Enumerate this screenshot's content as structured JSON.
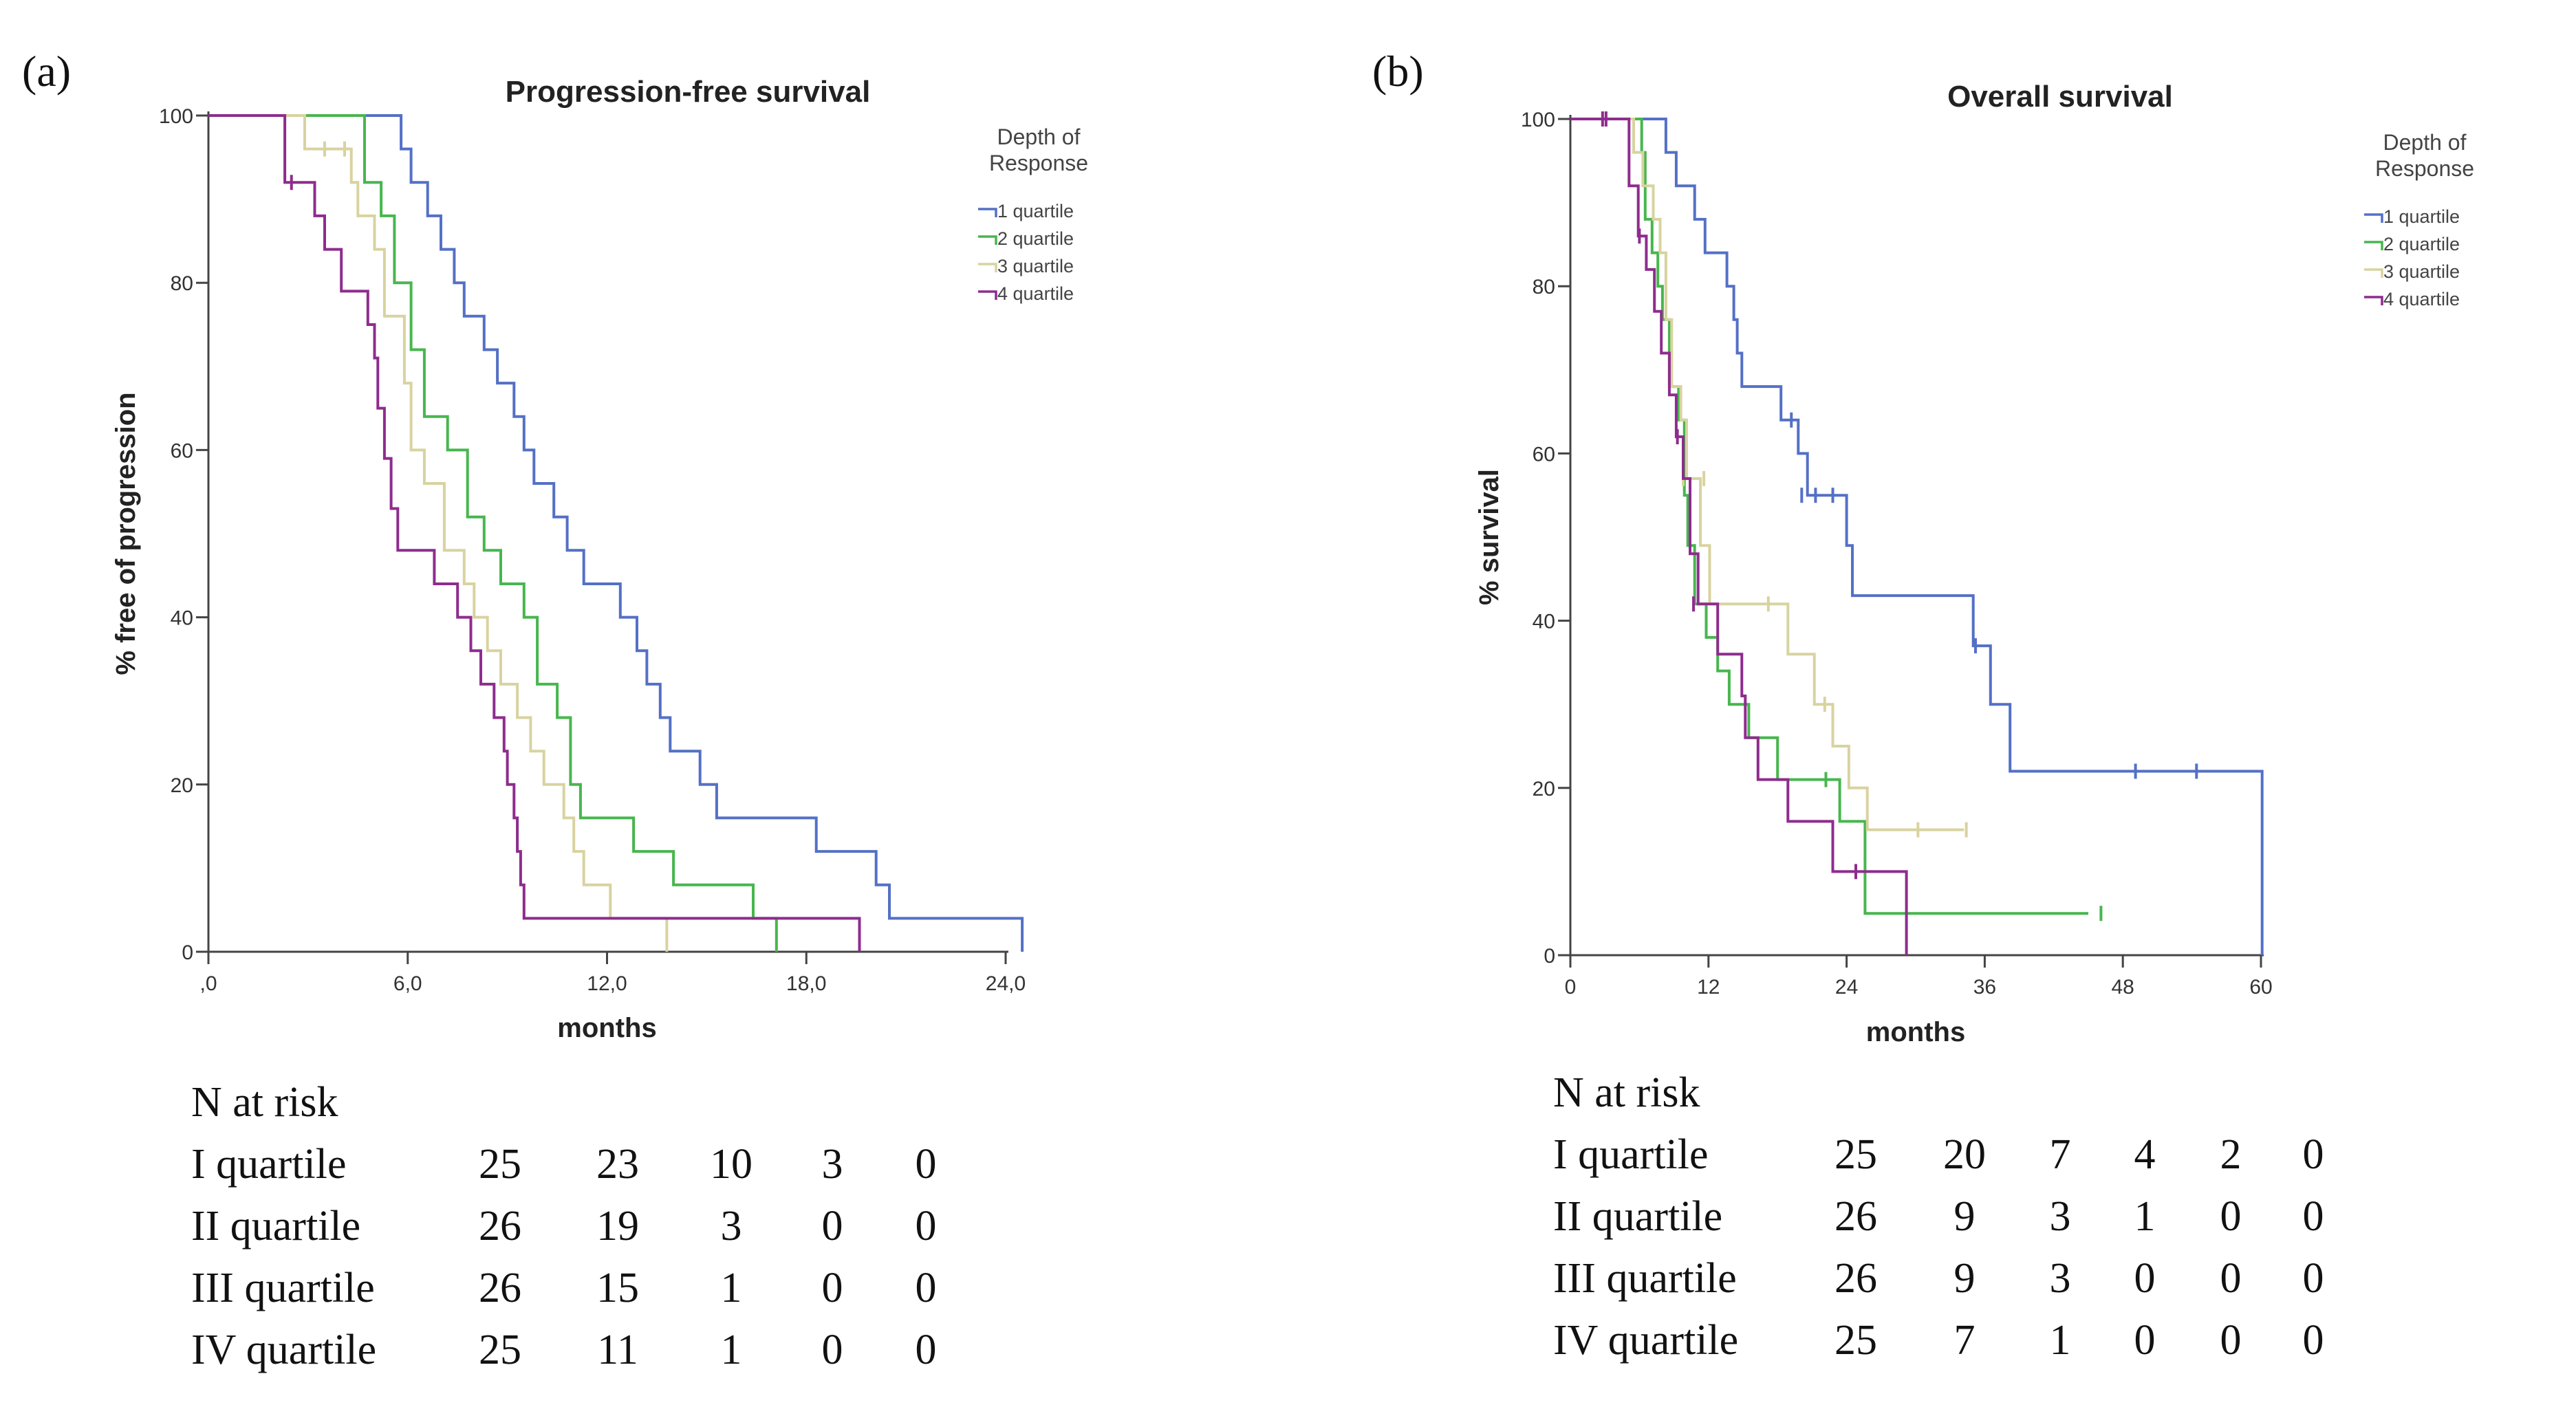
{
  "chart_data": [
    {
      "panel_label": "(a)",
      "type": "line",
      "subtype": "kaplan-meier-step",
      "title": "Progression-free survival",
      "xlabel": "months",
      "ylabel": "% free of progression",
      "xlim": [
        0,
        24
      ],
      "ylim": [
        0,
        100
      ],
      "x_ticks": [
        0,
        6,
        12,
        18,
        24
      ],
      "x_tick_labels": [
        ",0",
        "6,0",
        "12,0",
        "18,0",
        "24,0"
      ],
      "y_ticks": [
        0,
        20,
        40,
        60,
        80,
        100
      ],
      "legend_title_lines": [
        "Depth of",
        "Response"
      ],
      "legend_position": "right",
      "series": [
        {
          "name": "1 quartile",
          "color": "#5470c6",
          "points": [
            [
              0,
              100
            ],
            [
              5.7,
              100
            ],
            [
              5.8,
              96
            ],
            [
              6.1,
              92
            ],
            [
              6.6,
              88
            ],
            [
              7.0,
              84
            ],
            [
              7.4,
              80
            ],
            [
              7.7,
              76
            ],
            [
              8.3,
              72
            ],
            [
              8.7,
              68
            ],
            [
              9.2,
              64
            ],
            [
              9.5,
              60
            ],
            [
              9.8,
              56
            ],
            [
              10.4,
              52
            ],
            [
              10.8,
              48
            ],
            [
              11.3,
              44
            ],
            [
              12.4,
              40
            ],
            [
              12.9,
              36
            ],
            [
              13.2,
              32
            ],
            [
              13.6,
              28
            ],
            [
              13.9,
              24
            ],
            [
              14.8,
              20
            ],
            [
              15.3,
              16
            ],
            [
              18.3,
              12
            ],
            [
              20.1,
              8
            ],
            [
              20.5,
              4
            ],
            [
              24.5,
              4
            ],
            [
              24.5,
              0
            ]
          ],
          "censored": []
        },
        {
          "name": "2 quartile",
          "color": "#47b64e",
          "points": [
            [
              0,
              100
            ],
            [
              4.3,
              100
            ],
            [
              4.7,
              92
            ],
            [
              5.2,
              88
            ],
            [
              5.6,
              80
            ],
            [
              6.1,
              72
            ],
            [
              6.5,
              64
            ],
            [
              7.2,
              60
            ],
            [
              7.8,
              52
            ],
            [
              8.3,
              48
            ],
            [
              8.8,
              44
            ],
            [
              9.5,
              40
            ],
            [
              9.9,
              32
            ],
            [
              10.5,
              28
            ],
            [
              10.9,
              20
            ],
            [
              11.2,
              16
            ],
            [
              12.8,
              12
            ],
            [
              14.0,
              8
            ],
            [
              16.4,
              4
            ],
            [
              17.1,
              4
            ],
            [
              17.1,
              0
            ]
          ],
          "censored": []
        },
        {
          "name": "3 quartile",
          "color": "#d8d3a0",
          "points": [
            [
              0,
              100
            ],
            [
              2.5,
              100
            ],
            [
              2.9,
              96
            ],
            [
              4.3,
              92
            ],
            [
              4.5,
              88
            ],
            [
              5.0,
              84
            ],
            [
              5.3,
              76
            ],
            [
              5.9,
              68
            ],
            [
              6.1,
              60
            ],
            [
              6.5,
              56
            ],
            [
              7.1,
              48
            ],
            [
              7.7,
              44
            ],
            [
              8.0,
              40
            ],
            [
              8.4,
              36
            ],
            [
              8.8,
              32
            ],
            [
              9.3,
              28
            ],
            [
              9.7,
              24
            ],
            [
              10.1,
              20
            ],
            [
              10.7,
              16
            ],
            [
              11.0,
              12
            ],
            [
              11.3,
              8
            ],
            [
              12.1,
              4
            ],
            [
              13.8,
              4
            ],
            [
              13.8,
              0
            ]
          ],
          "censored": [
            [
              3.5,
              96
            ],
            [
              4.1,
              96
            ]
          ]
        },
        {
          "name": "4 quartile",
          "color": "#8e2c8e",
          "points": [
            [
              0,
              100
            ],
            [
              2.1,
              100
            ],
            [
              2.3,
              92
            ],
            [
              3.2,
              88
            ],
            [
              3.5,
              84
            ],
            [
              4.0,
              79
            ],
            [
              4.8,
              75
            ],
            [
              5.0,
              71
            ],
            [
              5.1,
              65
            ],
            [
              5.3,
              59
            ],
            [
              5.5,
              53
            ],
            [
              5.7,
              48
            ],
            [
              6.8,
              44
            ],
            [
              7.5,
              40
            ],
            [
              7.9,
              36
            ],
            [
              8.2,
              32
            ],
            [
              8.6,
              28
            ],
            [
              8.9,
              24
            ],
            [
              9.0,
              20
            ],
            [
              9.2,
              16
            ],
            [
              9.3,
              12
            ],
            [
              9.4,
              8
            ],
            [
              9.5,
              4
            ],
            [
              19.6,
              4
            ],
            [
              19.6,
              0
            ]
          ],
          "censored": [
            [
              2.5,
              92
            ]
          ]
        }
      ],
      "risk_table": {
        "title": "N at risk",
        "rows": [
          {
            "label": "I quartile",
            "values": [
              "25",
              "23",
              "10",
              "3",
              "0"
            ]
          },
          {
            "label": "II quartile",
            "values": [
              "26",
              "19",
              "3",
              "0",
              "0"
            ]
          },
          {
            "label": "III quartile",
            "values": [
              "26",
              "15",
              "1",
              "0",
              "0"
            ]
          },
          {
            "label": "IV quartile",
            "values": [
              "25",
              "11",
              "1",
              "0",
              "0"
            ]
          }
        ]
      }
    },
    {
      "panel_label": "(b)",
      "type": "line",
      "subtype": "kaplan-meier-step",
      "title": "Overall survival",
      "xlabel": "months",
      "ylabel": "% survival",
      "xlim": [
        0,
        60
      ],
      "ylim": [
        0,
        100
      ],
      "x_ticks": [
        0,
        12,
        24,
        36,
        48,
        60
      ],
      "x_tick_labels": [
        "0",
        "12",
        "24",
        "36",
        "48",
        "60"
      ],
      "y_ticks": [
        0,
        20,
        40,
        60,
        80,
        100
      ],
      "legend_title_lines": [
        "Depth of",
        "Response"
      ],
      "legend_position": "right",
      "series": [
        {
          "name": "1 quartile",
          "color": "#5470c6",
          "points": [
            [
              0,
              100
            ],
            [
              8.0,
              100
            ],
            [
              8.3,
              96
            ],
            [
              9.2,
              92
            ],
            [
              10.8,
              88
            ],
            [
              11.7,
              84
            ],
            [
              13.6,
              80
            ],
            [
              14.2,
              76
            ],
            [
              14.5,
              72
            ],
            [
              14.9,
              68
            ],
            [
              18.3,
              64
            ],
            [
              19.8,
              60
            ],
            [
              20.6,
              55
            ],
            [
              24.0,
              49
            ],
            [
              24.5,
              43
            ],
            [
              35.0,
              37
            ],
            [
              36.5,
              30
            ],
            [
              38.2,
              22
            ],
            [
              60.1,
              22
            ],
            [
              60.1,
              0
            ]
          ],
          "censored": [
            [
              19.2,
              64
            ],
            [
              20.1,
              55
            ],
            [
              21.3,
              55
            ],
            [
              22.8,
              55
            ],
            [
              35.2,
              37
            ],
            [
              49.1,
              22
            ],
            [
              54.4,
              22
            ]
          ]
        },
        {
          "name": "2 quartile",
          "color": "#47b64e",
          "points": [
            [
              0,
              100
            ],
            [
              5.7,
              100
            ],
            [
              6.2,
              96
            ],
            [
              6.5,
              88
            ],
            [
              7.1,
              84
            ],
            [
              7.6,
              80
            ],
            [
              8.0,
              76
            ],
            [
              8.6,
              68
            ],
            [
              9.4,
              64
            ],
            [
              9.9,
              55
            ],
            [
              10.2,
              49
            ],
            [
              10.8,
              42
            ],
            [
              11.8,
              38
            ],
            [
              12.8,
              34
            ],
            [
              13.8,
              30
            ],
            [
              15.5,
              26
            ],
            [
              18.0,
              21
            ],
            [
              23.4,
              16
            ],
            [
              25.6,
              5
            ],
            [
              45.0,
              5
            ]
          ],
          "censored": [
            [
              46.1,
              5
            ],
            [
              22.2,
              21
            ]
          ]
        },
        {
          "name": "3 quartile",
          "color": "#d8d3a0",
          "points": [
            [
              0,
              100
            ],
            [
              5.2,
              100
            ],
            [
              5.5,
              96
            ],
            [
              6.3,
              92
            ],
            [
              7.2,
              88
            ],
            [
              7.8,
              84
            ],
            [
              8.3,
              76
            ],
            [
              8.8,
              68
            ],
            [
              9.6,
              64
            ],
            [
              10.1,
              57
            ],
            [
              11.3,
              49
            ],
            [
              12.1,
              42
            ],
            [
              18.4,
              42
            ],
            [
              18.9,
              36
            ],
            [
              21.2,
              30
            ],
            [
              22.8,
              25
            ],
            [
              24.2,
              20
            ],
            [
              25.8,
              15
            ],
            [
              34.2,
              15
            ]
          ],
          "censored": [
            [
              9.8,
              57
            ],
            [
              11.6,
              57
            ],
            [
              17.2,
              42
            ],
            [
              22.1,
              30
            ],
            [
              30.2,
              15
            ],
            [
              34.4,
              15
            ]
          ]
        },
        {
          "name": "4 quartile",
          "color": "#8e2c8e",
          "points": [
            [
              0,
              100
            ],
            [
              4.6,
              100
            ],
            [
              5.1,
              92
            ],
            [
              5.9,
              86
            ],
            [
              6.6,
              82
            ],
            [
              7.3,
              77
            ],
            [
              7.9,
              72
            ],
            [
              8.6,
              67
            ],
            [
              9.2,
              62
            ],
            [
              9.8,
              57
            ],
            [
              10.4,
              48
            ],
            [
              11.1,
              42
            ],
            [
              12.8,
              36
            ],
            [
              14.9,
              31
            ],
            [
              15.2,
              26
            ],
            [
              16.3,
              21
            ],
            [
              18.9,
              16
            ],
            [
              22.8,
              10
            ],
            [
              29.2,
              10
            ],
            [
              29.2,
              0
            ]
          ],
          "censored": [
            [
              2.8,
              100
            ],
            [
              3.1,
              100
            ],
            [
              6.0,
              86
            ],
            [
              9.3,
              62
            ],
            [
              10.7,
              42
            ],
            [
              24.8,
              10
            ]
          ]
        }
      ],
      "risk_table": {
        "title": "N at risk",
        "rows": [
          {
            "label": "I quartile",
            "values": [
              "25",
              "20",
              "7",
              "4",
              "2",
              "0"
            ]
          },
          {
            "label": "II quartile",
            "values": [
              "26",
              "9",
              "3",
              "1",
              "0",
              "0"
            ]
          },
          {
            "label": "III quartile",
            "values": [
              "26",
              "9",
              "3",
              "0",
              "0",
              "0"
            ]
          },
          {
            "label": "IV quartile",
            "values": [
              "25",
              "7",
              "1",
              "0",
              "0",
              "0"
            ]
          }
        ]
      }
    }
  ]
}
